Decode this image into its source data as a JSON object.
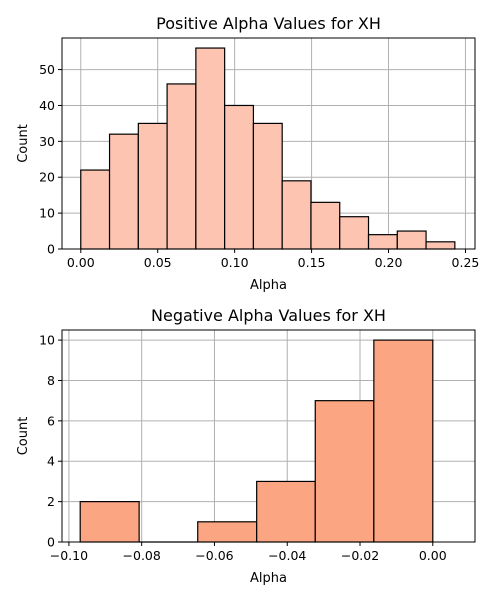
{
  "chart_data": [
    {
      "type": "bar",
      "title": "Positive Alpha Values for XH",
      "xlabel": "Alpha",
      "ylabel": "Count",
      "xlim": [
        -0.0122,
        0.2562
      ],
      "ylim": [
        0,
        58.8
      ],
      "xticks": [
        0.0,
        0.05,
        0.1,
        0.15,
        0.2,
        0.25
      ],
      "xtick_labels": [
        "0.00",
        "0.05",
        "0.10",
        "0.15",
        "0.20",
        "0.25"
      ],
      "yticks": [
        0,
        10,
        20,
        30,
        40,
        50
      ],
      "ytick_labels": [
        "0",
        "10",
        "20",
        "30",
        "40",
        "50"
      ],
      "bin_edges": [
        0.0,
        0.0187,
        0.0374,
        0.0561,
        0.0748,
        0.0935,
        0.1122,
        0.1309,
        0.1496,
        0.1683,
        0.187,
        0.2057,
        0.2244,
        0.2431
      ],
      "values": [
        22,
        32,
        35,
        46,
        56,
        40,
        35,
        19,
        13,
        9,
        4,
        5,
        2
      ],
      "bar_color": "#fdc4b1",
      "edge_color": "#000000",
      "grid": true
    },
    {
      "type": "bar",
      "title": "Negative Alpha Values for XH",
      "xlabel": "Alpha",
      "ylabel": "Count",
      "xlim": [
        -0.1019,
        0.0116
      ],
      "ylim": [
        0,
        10.5
      ],
      "xticks": [
        -0.1,
        -0.08,
        -0.06,
        -0.04,
        -0.02,
        0.0
      ],
      "xtick_labels": [
        "−0.10",
        "−0.08",
        "−0.06",
        "−0.04",
        "−0.02",
        "0.00"
      ],
      "yticks": [
        0,
        2,
        4,
        6,
        8,
        10
      ],
      "ytick_labels": [
        "0",
        "2",
        "4",
        "6",
        "8",
        "10"
      ],
      "bin_edges": [
        -0.0969,
        -0.0807,
        -0.0646,
        -0.0484,
        -0.0323,
        -0.0162,
        0.0
      ],
      "values": [
        2,
        0,
        1,
        3,
        7,
        10
      ],
      "bar_color": "#fca582",
      "edge_color": "#000000",
      "grid": true
    }
  ]
}
